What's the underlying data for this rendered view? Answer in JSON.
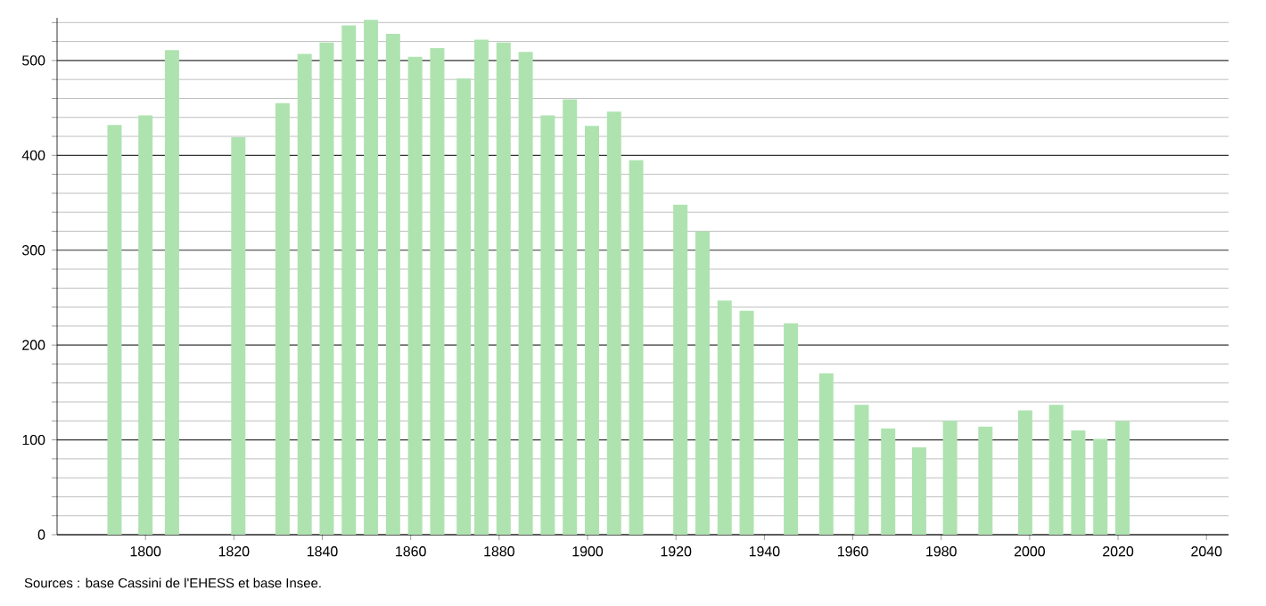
{
  "chart_data": {
    "type": "bar",
    "color": "#aee3b0",
    "x": [
      1793,
      1800,
      1806,
      1821,
      1831,
      1836,
      1841,
      1846,
      1851,
      1856,
      1861,
      1866,
      1872,
      1876,
      1881,
      1886,
      1891,
      1896,
      1901,
      1906,
      1911,
      1921,
      1926,
      1931,
      1936,
      1946,
      1954,
      1962,
      1968,
      1975,
      1982,
      1990,
      1999,
      2006,
      2011,
      2016,
      2021
    ],
    "values": [
      432,
      442,
      511,
      419,
      455,
      507,
      519,
      537,
      543,
      528,
      504,
      513,
      481,
      522,
      519,
      509,
      442,
      459,
      431,
      446,
      395,
      348,
      320,
      247,
      236,
      223,
      170,
      137,
      112,
      92,
      120,
      114,
      131,
      137,
      110,
      101,
      120
    ],
    "xlim": [
      1780,
      2045
    ],
    "ylim": [
      0,
      545
    ],
    "xticks": [
      1800,
      1820,
      1840,
      1860,
      1880,
      1900,
      1920,
      1940,
      1960,
      1980,
      2000,
      2020,
      2040
    ],
    "yticks": [
      0,
      {
        "value": 20,
        "label": null
      },
      {
        "value": 40,
        "label": null
      },
      {
        "value": 60,
        "label": null
      },
      {
        "value": 80,
        "label": null
      },
      100,
      {
        "value": 120,
        "label": null
      },
      {
        "value": 140,
        "label": null
      },
      {
        "value": 160,
        "label": null
      },
      {
        "value": 180,
        "label": null
      },
      200,
      {
        "value": 220,
        "label": null
      },
      {
        "value": 240,
        "label": null
      },
      {
        "value": 260,
        "label": null
      },
      {
        "value": 280,
        "label": null
      },
      300,
      {
        "value": 320,
        "label": null
      },
      {
        "value": 340,
        "label": null
      },
      {
        "value": 360,
        "label": null
      },
      {
        "value": 380,
        "label": null
      },
      400,
      {
        "value": 420,
        "label": null
      },
      {
        "value": 440,
        "label": null
      },
      {
        "value": 460,
        "label": null
      },
      {
        "value": 480,
        "label": null
      },
      500,
      {
        "value": 520,
        "label": null
      },
      {
        "value": 540,
        "label": null
      }
    ],
    "grid": "y",
    "annotations": [
      "Sources : base Cassini de l'EHESS et base Insee."
    ]
  }
}
